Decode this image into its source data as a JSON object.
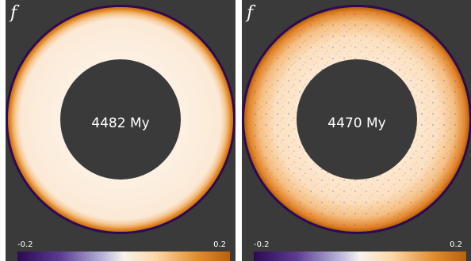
{
  "panels": [
    {
      "label": "f",
      "time": "4482 My",
      "colorbar": {
        "min": "-0.2",
        "max": "0.2"
      }
    },
    {
      "label": "f",
      "time": "4470 My",
      "colorbar": {
        "min": "-0.2",
        "max": "0.2"
      }
    }
  ],
  "colors": {
    "background": "#3a3a3a",
    "outer_boundary": "#2d0a52",
    "colormap": [
      "#2d0a52",
      "#5b3a92",
      "#b7b3d8",
      "#f7f2ec",
      "#fbd7a8",
      "#e08c2c",
      "#b8620c"
    ]
  }
}
